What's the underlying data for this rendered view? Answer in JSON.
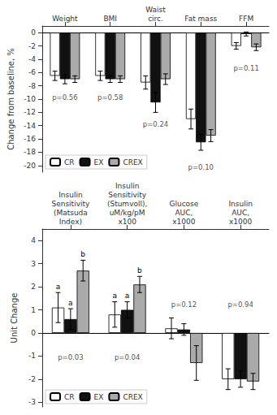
{
  "chart_data": [
    {
      "type": "bar",
      "categories": [
        "Weight",
        "BMI",
        "Waist\ncirc.",
        "Fat mass",
        "FFM"
      ],
      "series": [
        {
          "name": "CR",
          "color": "#ffffff",
          "values": [
            -6.5,
            -6.5,
            -7.5,
            -13.0,
            -2.0
          ],
          "errors": [
            0.7,
            0.7,
            1.0,
            1.5,
            0.5
          ]
        },
        {
          "name": "EX",
          "color": "#111111",
          "values": [
            -7.0,
            -7.0,
            -10.5,
            -16.5,
            -0.2
          ],
          "errors": [
            0.7,
            0.5,
            1.5,
            1.2,
            0.3
          ]
        },
        {
          "name": "CREX",
          "color": "#aaaaaa",
          "values": [
            -7.0,
            -7.0,
            -7.0,
            -15.5,
            -2.2
          ],
          "errors": [
            0.5,
            0.5,
            0.8,
            0.9,
            0.5
          ]
        }
      ],
      "annotations": [
        {
          "text": "p=0.56",
          "x": "Weight",
          "y": -9.0
        },
        {
          "text": "p=0.58",
          "x": "BMI",
          "y": -9.0
        },
        {
          "text": "p=0.24",
          "x": "Waist\ncirc.",
          "y": -13.0
        },
        {
          "text": "p=0.10",
          "x": "Fat mass",
          "y": -19.5
        },
        {
          "text": "p=0.11",
          "x": "FFM",
          "y": -4.5
        }
      ],
      "ylabel": "Change from baseline, %",
      "ylim": [
        -21,
        1.0
      ],
      "yticks": [
        0,
        -2,
        -4,
        -6,
        -8,
        -10,
        -12,
        -14,
        -16,
        -18,
        -20
      ],
      "grid": false,
      "legend": "lower left"
    },
    {
      "type": "bar",
      "categories": [
        "Insulin\nSensitivity\n(Matsuda\nIndex)",
        "Insulin\nSensitivity\n(Stumvoll),\nuM/kg/pM\nx100",
        "Glucose\nAUC,\nx1000",
        "Insulin\nAUC,\nx1000"
      ],
      "series": [
        {
          "name": "CR",
          "color": "#ffffff",
          "values": [
            1.1,
            0.8,
            0.2,
            -2.0
          ],
          "errors": [
            0.65,
            0.55,
            0.45,
            0.45
          ],
          "letters": [
            "a",
            "a",
            null,
            null
          ]
        },
        {
          "name": "EX",
          "color": "#111111",
          "values": [
            0.6,
            1.0,
            0.15,
            -2.0
          ],
          "errors": [
            0.45,
            0.35,
            0.25,
            0.35
          ],
          "letters": [
            "a",
            "a",
            null,
            null
          ]
        },
        {
          "name": "CREX",
          "color": "#aaaaaa",
          "values": [
            2.7,
            2.1,
            -1.3,
            -2.1
          ],
          "errors": [
            0.45,
            0.35,
            0.75,
            0.35
          ],
          "letters": [
            "b",
            "b",
            null,
            null
          ]
        }
      ],
      "annotations": [
        {
          "text": "p=0.03",
          "x": "Insulin\nSensitivity\n(Matsuda\nIndex)",
          "y": -1.3
        },
        {
          "text": "p=0.04",
          "x": "Insulin\nSensitivity\n(Stumvoll),\nuM/kg/pM\nx100",
          "y": -1.3
        },
        {
          "text": "p=0.12",
          "x": "Glucose\nAUC,\nx1000",
          "y": 1.0
        },
        {
          "text": "p=0.94",
          "x": "Insulin\nAUC,\nx1000",
          "y": 1.0
        }
      ],
      "ylabel": "Unit Change",
      "ylim": [
        -3.2,
        4.5
      ],
      "yticks": [
        -3,
        -2,
        -1,
        0,
        1,
        2,
        3,
        4
      ],
      "grid": false,
      "legend": "lower left"
    }
  ]
}
